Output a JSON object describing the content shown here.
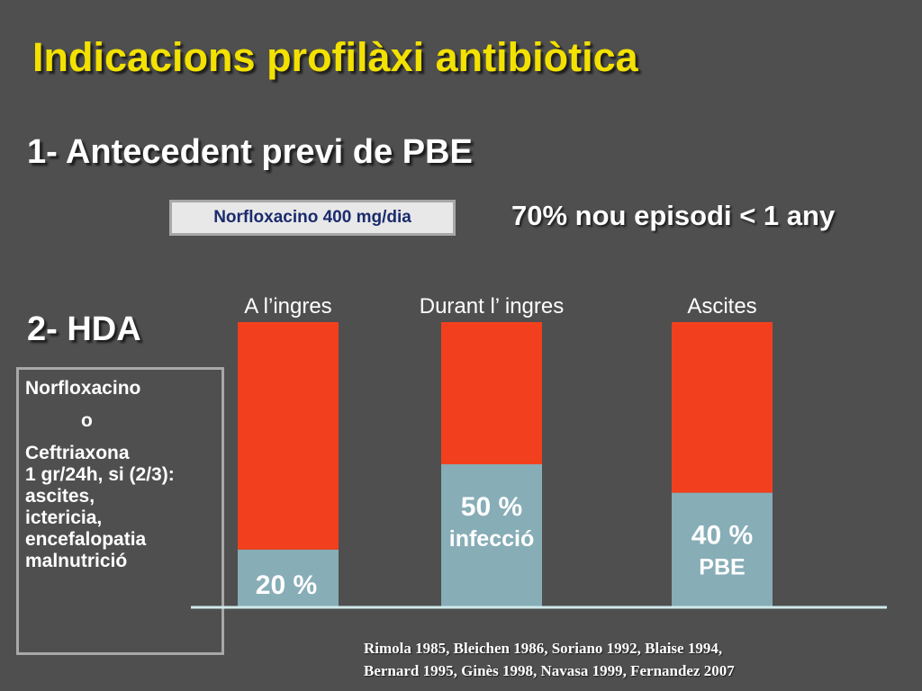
{
  "slide": {
    "title": "Indicacions profilàxi antibiòtica",
    "section1": {
      "heading": "1- Antecedent previ de PBE",
      "drug_box": "Norfloxacino 400 mg/dia",
      "recurrence": "70% nou episodi < 1 any"
    },
    "section2": {
      "heading": "2- HDA",
      "regimen": [
        "Norfloxacino",
        "o",
        "Ceftriaxona",
        "1 gr/24h, si (2/3):",
        "ascites,",
        "ictericia,",
        "encefalopatia",
        "malnutrició"
      ]
    },
    "references": [
      "Rimola 1985, Bleichen 1986, Soriano 1992, Blaise 1994,",
      "Bernard 1995, Ginès 1998, Navasa 1999, Fernandez 2007"
    ]
  },
  "chart_data": {
    "type": "bar",
    "stacked": true,
    "categories": [
      "A l’ingres",
      "Durant l’ ingres",
      "Ascites"
    ],
    "series": [
      {
        "values": [
          20,
          50,
          40
        ],
        "color": "#87adb7"
      },
      {
        "values": [
          80,
          50,
          60
        ],
        "color": "#f2401e"
      }
    ],
    "labels": [
      {
        "value": "20 %",
        "sub": ""
      },
      {
        "value": "50 %",
        "sub": "infecció"
      },
      {
        "value": "40 %",
        "sub": "PBE"
      }
    ],
    "ylim": [
      0,
      100
    ],
    "grid": false,
    "baseline_color": "#cfe9ea"
  }
}
